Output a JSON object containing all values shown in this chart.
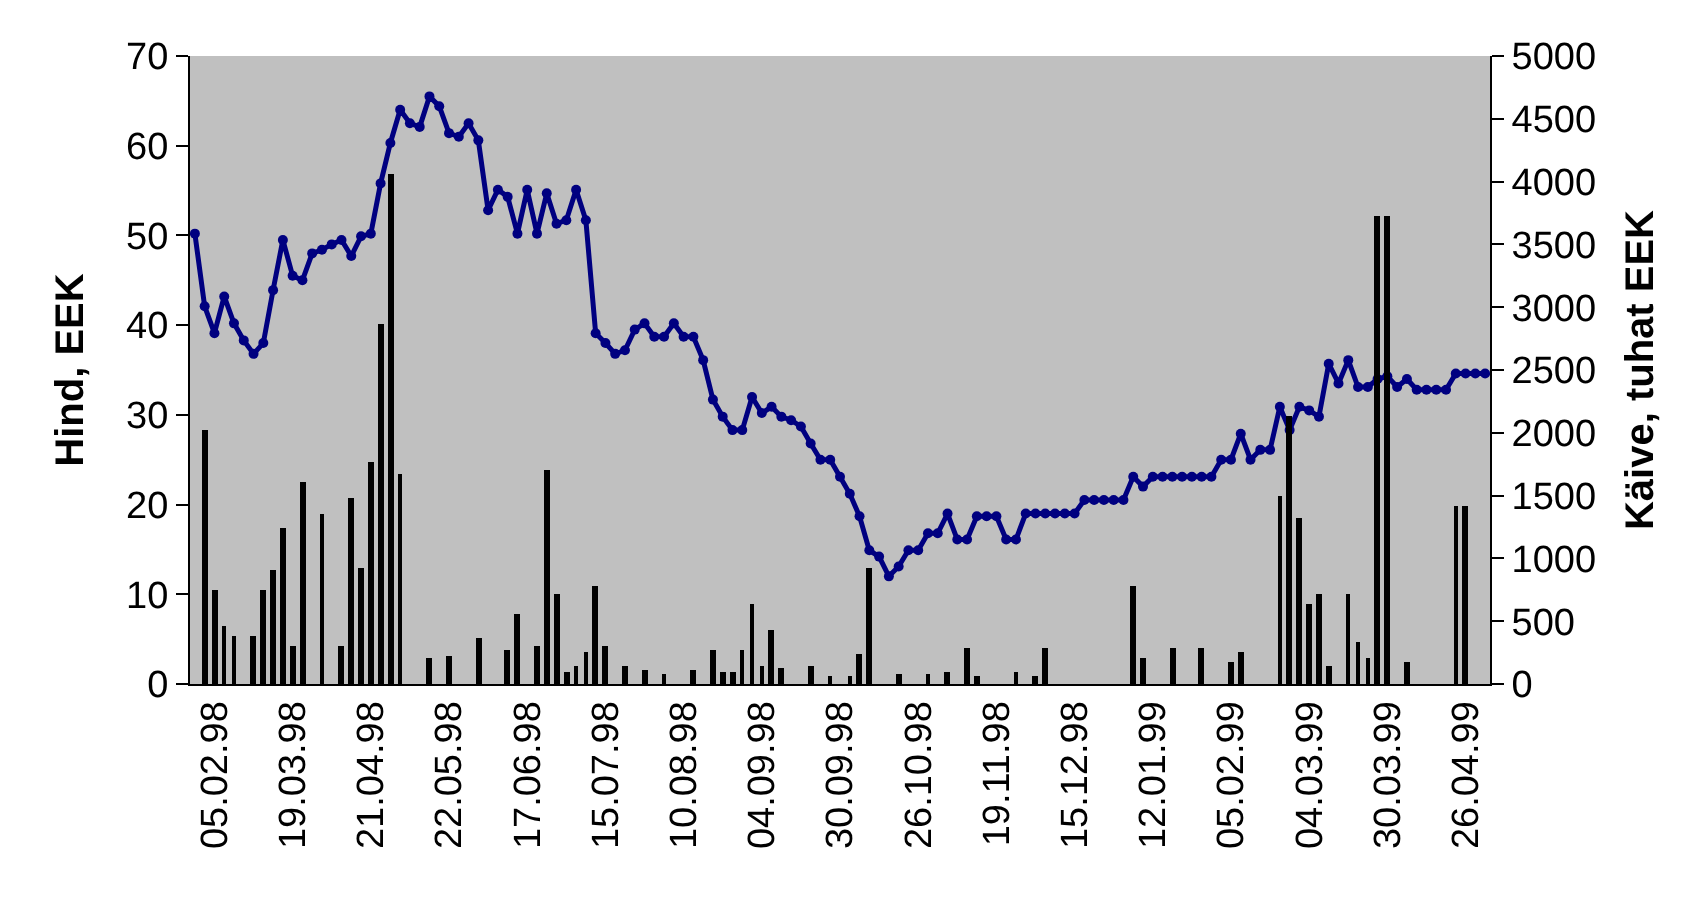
{
  "chart_data": {
    "type": "line",
    "ylabel": "Hind, EEK",
    "y2label": "Käive, tuhat EEK",
    "categories": [
      null,
      null,
      "05.02.98",
      null,
      null,
      null,
      null,
      null,
      null,
      null,
      "19.03.98",
      null,
      null,
      null,
      null,
      null,
      null,
      null,
      "21.04.98",
      null,
      null,
      null,
      null,
      null,
      null,
      null,
      "22.05.98",
      null,
      null,
      null,
      null,
      null,
      null,
      null,
      "17.06.98",
      null,
      null,
      null,
      null,
      null,
      null,
      null,
      "15.07.98",
      null,
      null,
      null,
      null,
      null,
      null,
      null,
      "10.08.98",
      null,
      null,
      null,
      null,
      null,
      null,
      null,
      "04.09.98",
      null,
      null,
      null,
      null,
      null,
      null,
      null,
      "30.09.98",
      null,
      null,
      null,
      null,
      null,
      null,
      null,
      "26.10.98",
      null,
      null,
      null,
      null,
      null,
      null,
      null,
      "19.11.98",
      null,
      null,
      null,
      null,
      null,
      null,
      null,
      "15.12.98",
      null,
      null,
      null,
      null,
      null,
      null,
      null,
      "12.01.99",
      null,
      null,
      null,
      null,
      null,
      null,
      null,
      "05.02.99",
      null,
      null,
      null,
      null,
      null,
      null,
      null,
      "04.03.99",
      null,
      null,
      null,
      null,
      null,
      null,
      null,
      "30.03.99",
      null,
      null,
      null,
      null,
      null,
      null,
      null,
      "26.04.99",
      null,
      null
    ],
    "series": [
      {
        "type": "bar",
        "axis": "y2",
        "color": "#000000",
        "values": [
          null,
          2020,
          750,
          460,
          390,
          null,
          380,
          750,
          910,
          1250,
          300,
          1610,
          null,
          1360,
          null,
          310,
          1480,
          920,
          1770,
          2870,
          4060,
          1670,
          null,
          null,
          210,
          null,
          220,
          null,
          null,
          370,
          null,
          null,
          270,
          560,
          null,
          310,
          1710,
          720,
          100,
          150,
          250,
          780,
          300,
          null,
          150,
          null,
          110,
          null,
          80,
          null,
          null,
          110,
          null,
          270,
          100,
          100,
          270,
          640,
          150,
          430,
          120,
          null,
          null,
          140,
          null,
          60,
          null,
          60,
          240,
          930,
          null,
          null,
          80,
          null,
          null,
          80,
          null,
          100,
          null,
          290,
          70,
          null,
          null,
          null,
          100,
          null,
          70,
          290,
          null,
          null,
          null,
          null,
          null,
          null,
          null,
          null,
          780,
          200,
          null,
          null,
          290,
          null,
          null,
          290,
          null,
          null,
          180,
          250,
          null,
          null,
          null,
          1500,
          2130,
          1320,
          630,
          720,
          150,
          null,
          720,
          340,
          200,
          3720,
          3720,
          null,
          180,
          null,
          null,
          null,
          null,
          1410,
          1410,
          null,
          null
        ]
      },
      {
        "color": "#000080",
        "values": [
          50.2,
          42.1,
          39.1,
          43.2,
          40.2,
          38.3,
          36.8,
          38.0,
          43.9,
          49.5,
          45.5,
          45.0,
          48.0,
          48.4,
          49.0,
          49.5,
          47.7,
          49.9,
          50.2,
          55.8,
          60.3,
          64.0,
          62.5,
          62.1,
          65.5,
          64.4,
          61.4,
          61.0,
          62.5,
          60.6,
          52.8,
          55.1,
          54.3,
          50.2,
          55.1,
          50.2,
          54.7,
          51.3,
          51.7,
          55.1,
          51.7,
          39.1,
          38.0,
          36.8,
          37.2,
          39.5,
          40.2,
          38.7,
          38.7,
          40.2,
          38.7,
          38.7,
          36.1,
          31.7,
          29.8,
          28.3,
          28.3,
          32.0,
          30.2,
          30.9,
          29.8,
          29.4,
          28.7,
          26.8,
          25.0,
          25.0,
          23.1,
          21.2,
          18.7,
          14.9,
          14.2,
          12.0,
          13.1,
          14.9,
          14.9,
          16.8,
          16.8,
          19.0,
          16.1,
          16.1,
          18.7,
          18.7,
          18.7,
          16.1,
          16.1,
          19.0,
          19.0,
          19.0,
          19.0,
          19.0,
          19.0,
          20.5,
          20.5,
          20.5,
          20.5,
          20.5,
          23.1,
          22.0,
          23.1,
          23.1,
          23.1,
          23.1,
          23.1,
          23.1,
          23.1,
          25.0,
          25.0,
          27.9,
          25.0,
          26.1,
          26.1,
          30.9,
          28.3,
          30.9,
          30.5,
          29.8,
          35.7,
          33.5,
          36.1,
          33.1,
          33.1,
          34.0,
          34.3,
          33.1,
          34.0,
          32.8,
          32.8,
          32.8,
          32.8,
          34.6,
          34.6,
          34.6,
          34.6
        ]
      }
    ],
    "ylim": [
      0,
      70
    ],
    "yticks": [
      0,
      10,
      20,
      30,
      40,
      50,
      60,
      70
    ],
    "y2lim": [
      0,
      5000
    ],
    "y2ticks": [
      0,
      500,
      1000,
      1500,
      2000,
      2500,
      3000,
      3500,
      4000,
      4500,
      5000
    ],
    "marker": "circle",
    "line_style": "solid",
    "grid": false
  }
}
